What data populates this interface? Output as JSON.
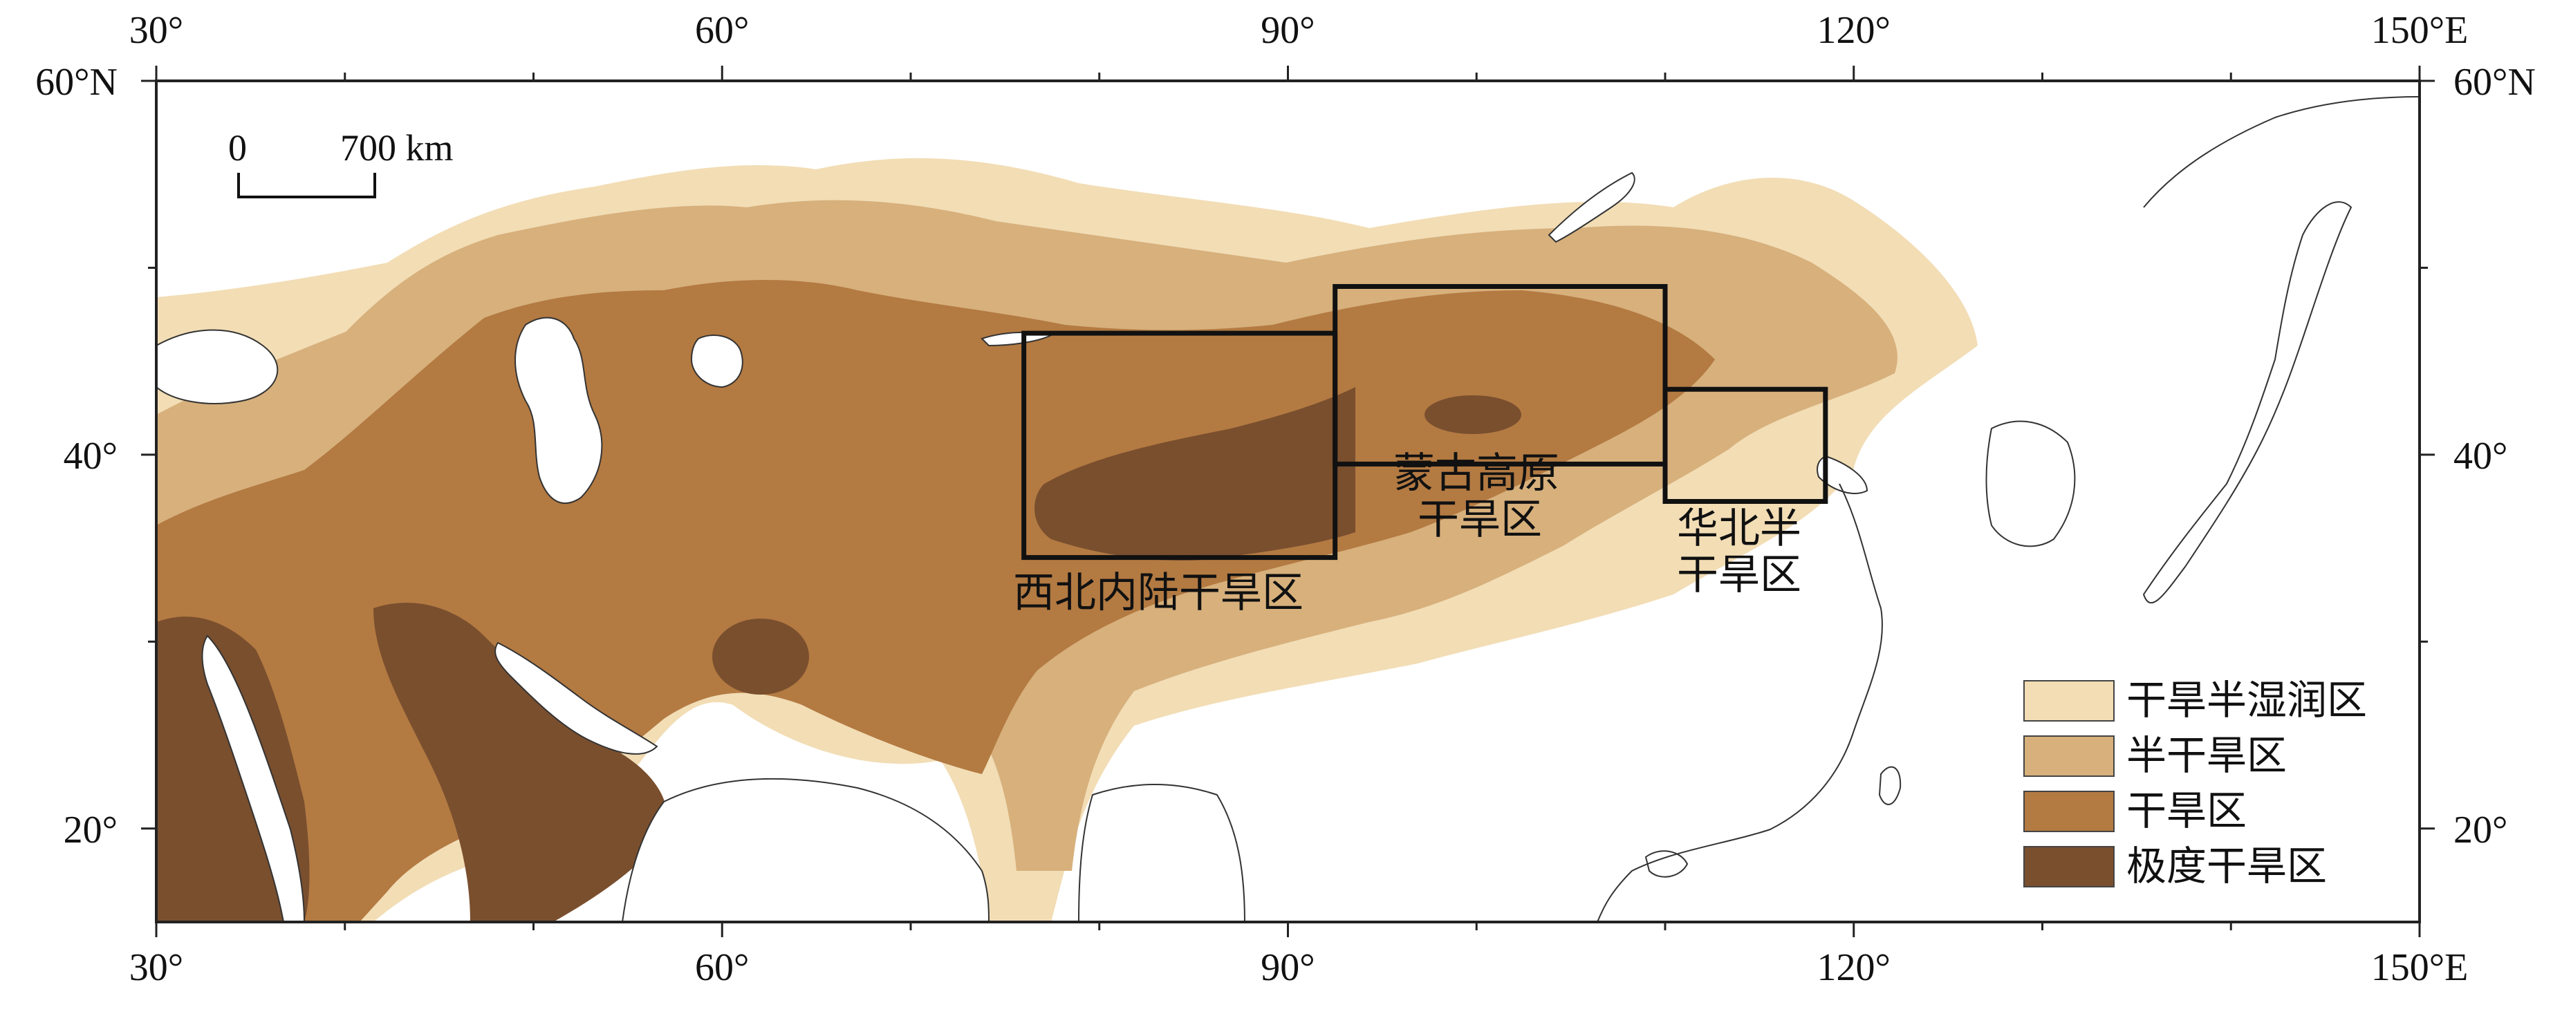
{
  "map": {
    "axes": {
      "lon_min": 30,
      "lon_max": 150,
      "lat_min": 15,
      "lat_max": 60,
      "top_labels": [
        "30°",
        "60°",
        "90°",
        "120°",
        "150°E"
      ],
      "bottom_labels": [
        "30°",
        "60°",
        "90°",
        "120°",
        "150°E"
      ],
      "left_labels": [
        "60°N",
        "40°",
        "20°"
      ],
      "right_labels": [
        "60°N",
        "40°",
        "20°"
      ],
      "label_lons": [
        30,
        60,
        90,
        120,
        150
      ],
      "label_lats": [
        60,
        40,
        20
      ]
    },
    "scale_bar": {
      "zero": "0",
      "distance": "700 km"
    },
    "regions": {
      "northwest": "西北内陆干旱区",
      "mongolia_line1": "蒙古高原",
      "mongolia_line2": "干旱区",
      "north_china_line1": "华北半",
      "north_china_line2": "干旱区"
    },
    "boxes": [
      {
        "name": "northwest-box",
        "lon": [
          76,
          92.5
        ],
        "lat": [
          34.5,
          46.5
        ]
      },
      {
        "name": "mongolia-box",
        "lon": [
          92.5,
          110
        ],
        "lat": [
          39.5,
          49
        ]
      },
      {
        "name": "north-china-box",
        "lon": [
          110,
          118.5
        ],
        "lat": [
          37.5,
          43.5
        ]
      }
    ],
    "legend": {
      "items": [
        {
          "label": "干旱半湿润区",
          "color": "#f2ddb5"
        },
        {
          "label": "半干旱区",
          "color": "#d7b07c"
        },
        {
          "label": "干旱区",
          "color": "#b37a42"
        },
        {
          "label": "极度干旱区",
          "color": "#7a4f2e"
        }
      ]
    }
  }
}
